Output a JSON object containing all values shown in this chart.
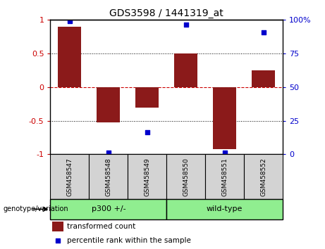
{
  "title": "GDS3598 / 1441319_at",
  "samples": [
    "GSM458547",
    "GSM458548",
    "GSM458549",
    "GSM458550",
    "GSM458551",
    "GSM458552"
  ],
  "bar_values": [
    0.9,
    -0.52,
    -0.3,
    0.5,
    -0.92,
    0.25
  ],
  "percentile_values": [
    0.98,
    -0.97,
    -0.67,
    0.93,
    -0.97,
    0.81
  ],
  "bar_color": "#8B1A1A",
  "dot_color": "#0000CC",
  "ylim": [
    -1.0,
    1.0
  ],
  "ytick_labels_left": [
    "-1",
    "-0.5",
    "0",
    "0.5",
    "1"
  ],
  "ytick_labels_right": [
    "0",
    "25",
    "50",
    "75",
    "100%"
  ],
  "ylabel_left_color": "#CC0000",
  "ylabel_right_color": "#0000CC",
  "hline_color": "#CC0000",
  "group_label": "genotype/variation",
  "legend_bar_label": "transformed count",
  "legend_dot_label": "percentile rank within the sample",
  "sample_box_color": "#D3D3D3",
  "group_color": "#90EE90",
  "group_defs": [
    {
      "label": "p300 +/-",
      "start": 0,
      "end": 2
    },
    {
      "label": "wild-type",
      "start": 3,
      "end": 5
    }
  ]
}
